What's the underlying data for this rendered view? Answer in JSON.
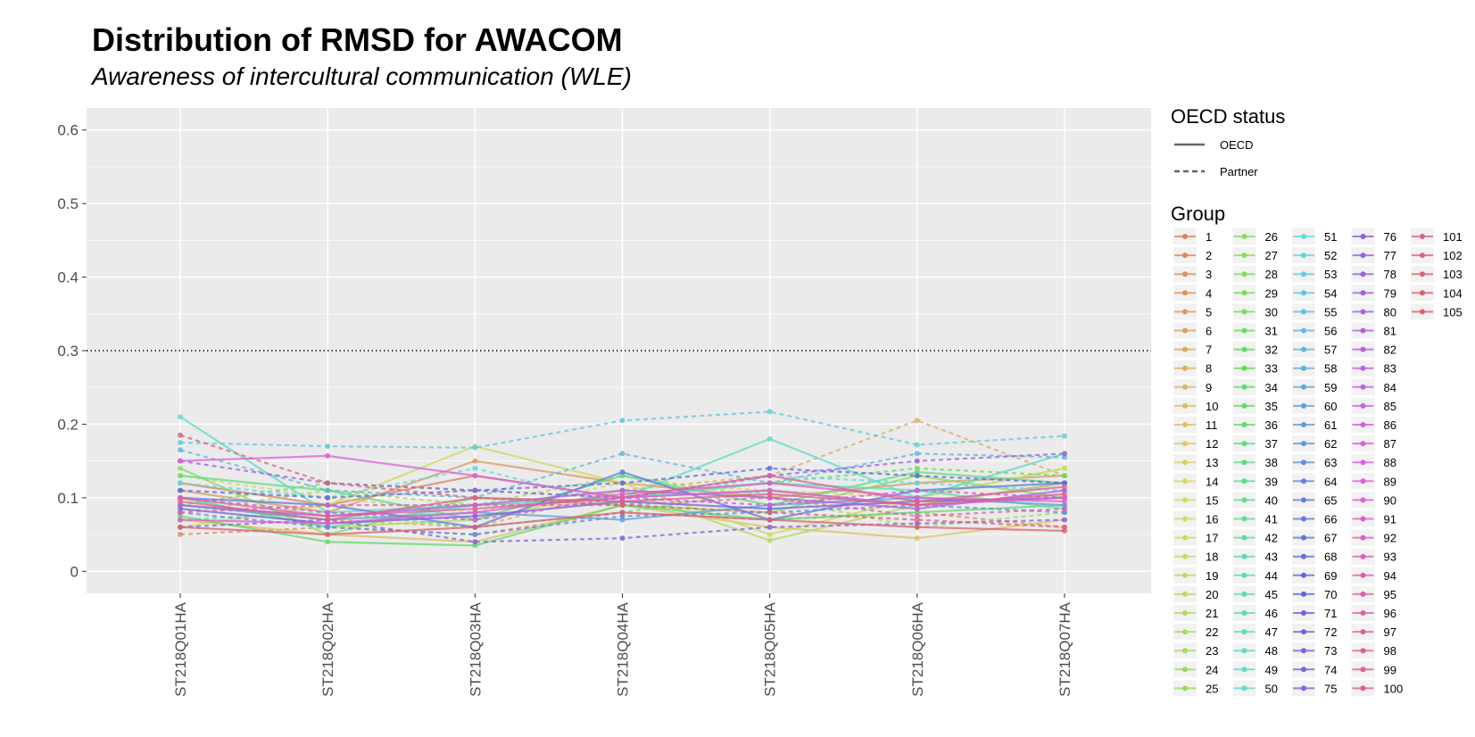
{
  "chart_data": {
    "type": "line",
    "title": "Distribution of RMSD for AWACOM",
    "subtitle": "Awareness of intercultural communication (WLE)",
    "xlabel": "",
    "ylabel": "",
    "ylim": [
      -0.03,
      0.63
    ],
    "y_ticks": [
      "0",
      "0.1",
      "0.2",
      "0.3",
      "0.4",
      "0.5",
      "0.6"
    ],
    "x_categories": [
      "ST218Q01HA",
      "ST218Q02HA",
      "ST218Q03HA",
      "ST218Q04HA",
      "ST218Q05HA",
      "ST218Q06HA",
      "ST218Q07HA"
    ],
    "reference_line": {
      "y": 0.3,
      "style": "dotted",
      "color": "#000000"
    },
    "grid": true,
    "background": "#ebebeb",
    "legend_position": "right",
    "linetype_legend": {
      "title": "OECD status",
      "entries": [
        {
          "label": "OECD",
          "linetype": "solid"
        },
        {
          "label": "Partner",
          "linetype": "dashed"
        }
      ]
    },
    "group_legend": {
      "title": "Group",
      "labels": [
        "1",
        "2",
        "3",
        "4",
        "5",
        "6",
        "7",
        "8",
        "9",
        "10",
        "11",
        "12",
        "13",
        "14",
        "15",
        "16",
        "17",
        "18",
        "19",
        "20",
        "21",
        "22",
        "23",
        "24",
        "25",
        "26",
        "27",
        "28",
        "29",
        "30",
        "31",
        "32",
        "33",
        "34",
        "35",
        "36",
        "37",
        "38",
        "39",
        "40",
        "41",
        "42",
        "43",
        "44",
        "45",
        "46",
        "47",
        "48",
        "49",
        "50",
        "51",
        "52",
        "53",
        "54",
        "55",
        "56",
        "57",
        "58",
        "59",
        "60",
        "61",
        "62",
        "63",
        "64",
        "65",
        "66",
        "67",
        "68",
        "69",
        "70",
        "71",
        "72",
        "73",
        "74",
        "75",
        "76",
        "77",
        "78",
        "79",
        "80",
        "81",
        "82",
        "83",
        "84",
        "85",
        "86",
        "87",
        "88",
        "89",
        "90",
        "91",
        "92",
        "93",
        "94",
        "95",
        "96",
        "97",
        "98",
        "99",
        "100",
        "101",
        "102",
        "103",
        "104",
        "105"
      ]
    },
    "series": [
      {
        "group": "1",
        "linetype": "solid",
        "values": [
          0.12,
          0.09,
          0.13,
          0.1,
          0.11,
          0.09,
          0.12
        ]
      },
      {
        "group": "3",
        "linetype": "dashed",
        "values": [
          0.05,
          0.06,
          0.05,
          0.08,
          0.07,
          0.08,
          0.06
        ]
      },
      {
        "group": "5",
        "linetype": "solid",
        "values": [
          0.11,
          0.08,
          0.15,
          0.12,
          0.1,
          0.12,
          0.13
        ]
      },
      {
        "group": "8",
        "linetype": "dashed",
        "values": [
          0.09,
          0.07,
          0.06,
          0.11,
          0.13,
          0.205,
          0.13
        ]
      },
      {
        "group": "11",
        "linetype": "solid",
        "values": [
          0.07,
          0.05,
          0.04,
          0.09,
          0.06,
          0.045,
          0.07
        ]
      },
      {
        "group": "14",
        "linetype": "dashed",
        "values": [
          0.13,
          0.1,
          0.08,
          0.12,
          0.11,
          0.1,
          0.14
        ]
      },
      {
        "group": "17",
        "linetype": "solid",
        "values": [
          0.06,
          0.09,
          0.17,
          0.12,
          0.05,
          0.1,
          0.14
        ]
      },
      {
        "group": "20",
        "linetype": "solid",
        "values": [
          0.1,
          0.06,
          0.07,
          0.11,
          0.042,
          0.09,
          0.12
        ]
      },
      {
        "group": "24",
        "linetype": "dashed",
        "values": [
          0.08,
          0.11,
          0.09,
          0.13,
          0.1,
          0.06,
          0.08
        ]
      },
      {
        "group": "27",
        "linetype": "solid",
        "values": [
          0.14,
          0.05,
          0.1,
          0.09,
          0.08,
          0.13,
          0.1
        ]
      },
      {
        "group": "31",
        "linetype": "dashed",
        "values": [
          0.09,
          0.12,
          0.11,
          0.1,
          0.12,
          0.14,
          0.13
        ]
      },
      {
        "group": "34",
        "linetype": "solid",
        "values": [
          0.075,
          0.04,
          0.035,
          0.09,
          0.07,
          0.08,
          0.09
        ]
      },
      {
        "group": "38",
        "linetype": "solid",
        "values": [
          0.13,
          0.11,
          0.07,
          0.13,
          0.09,
          0.135,
          0.12
        ]
      },
      {
        "group": "42",
        "linetype": "dashed",
        "values": [
          0.07,
          0.08,
          0.06,
          0.08,
          0.11,
          0.09,
          0.1
        ]
      },
      {
        "group": "45",
        "linetype": "solid",
        "values": [
          0.1,
          0.06,
          0.09,
          0.1,
          0.12,
          0.11,
          0.085
        ]
      },
      {
        "group": "48",
        "linetype": "solid",
        "values": [
          0.21,
          0.08,
          0.09,
          0.1,
          0.18,
          0.1,
          0.16
        ]
      },
      {
        "group": "51",
        "linetype": "dashed",
        "values": [
          0.12,
          0.1,
          0.14,
          0.09,
          0.13,
          0.12,
          0.11
        ]
      },
      {
        "group": "54",
        "linetype": "dashed",
        "values": [
          0.175,
          0.17,
          0.168,
          0.205,
          0.217,
          0.172,
          0.184
        ]
      },
      {
        "group": "57",
        "linetype": "dashed",
        "values": [
          0.165,
          0.11,
          0.1,
          0.16,
          0.12,
          0.16,
          0.155
        ]
      },
      {
        "group": "60",
        "linetype": "solid",
        "values": [
          0.09,
          0.07,
          0.08,
          0.07,
          0.09,
          0.1,
          0.09
        ]
      },
      {
        "group": "63",
        "linetype": "dashed",
        "values": [
          0.08,
          0.06,
          0.05,
          0.075,
          0.08,
          0.09,
          0.08
        ]
      },
      {
        "group": "66",
        "linetype": "solid",
        "values": [
          0.1,
          0.09,
          0.06,
          0.135,
          0.07,
          0.11,
          0.12
        ]
      },
      {
        "group": "69",
        "linetype": "dashed",
        "values": [
          0.11,
          0.1,
          0.11,
          0.12,
          0.14,
          0.13,
          0.12
        ]
      },
      {
        "group": "72",
        "linetype": "solid",
        "values": [
          0.085,
          0.065,
          0.075,
          0.095,
          0.085,
          0.095,
          0.1
        ]
      },
      {
        "group": "75",
        "linetype": "dashed",
        "values": [
          0.06,
          0.07,
          0.04,
          0.045,
          0.06,
          0.065,
          0.07
        ]
      },
      {
        "group": "78",
        "linetype": "dashed",
        "values": [
          0.15,
          0.12,
          0.11,
          0.1,
          0.13,
          0.15,
          0.16
        ]
      },
      {
        "group": "81",
        "linetype": "solid",
        "values": [
          0.09,
          0.075,
          0.09,
          0.11,
          0.1,
          0.085,
          0.11
        ]
      },
      {
        "group": "85",
        "linetype": "dashed",
        "values": [
          0.1,
          0.08,
          0.07,
          0.1,
          0.09,
          0.11,
          0.1
        ]
      },
      {
        "group": "88",
        "linetype": "solid",
        "values": [
          0.15,
          0.157,
          0.13,
          0.1,
          0.11,
          0.09,
          0.1
        ]
      },
      {
        "group": "91",
        "linetype": "solid",
        "values": [
          0.07,
          0.065,
          0.08,
          0.105,
          0.12,
          0.1,
          0.095
        ]
      },
      {
        "group": "94",
        "linetype": "dashed",
        "values": [
          0.08,
          0.09,
          0.09,
          0.09,
          0.1,
          0.075,
          0.085
        ]
      },
      {
        "group": "97",
        "linetype": "solid",
        "values": [
          0.1,
          0.075,
          0.085,
          0.1,
          0.13,
          0.095,
          0.115
        ]
      },
      {
        "group": "100",
        "linetype": "solid",
        "values": [
          0.095,
          0.07,
          0.1,
          0.095,
          0.105,
          0.09,
          0.105
        ]
      },
      {
        "group": "102",
        "linetype": "dashed",
        "values": [
          0.185,
          0.12,
          0.1,
          0.09,
          0.08,
          0.07,
          0.06
        ]
      },
      {
        "group": "104",
        "linetype": "solid",
        "values": [
          0.06,
          0.05,
          0.06,
          0.08,
          0.07,
          0.06,
          0.055
        ]
      }
    ]
  }
}
